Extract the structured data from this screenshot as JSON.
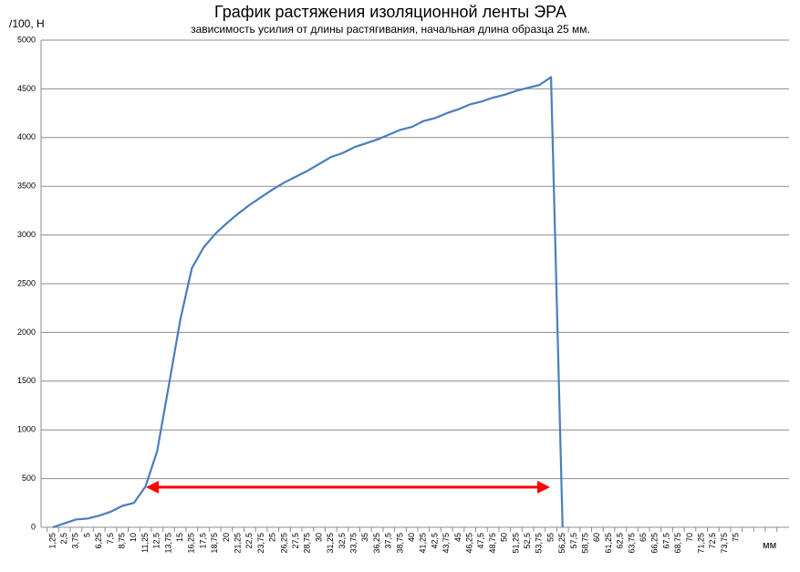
{
  "chart_data": {
    "type": "line",
    "title": "График растяжения изоляционной ленты ЭРА",
    "subtitle": "зависимость усилия от длины растягивания, начальная длина образца 25 мм.",
    "y_label": "/100, Н",
    "x_label": "мм",
    "categories": [
      "1,25",
      "2,5",
      "3,75",
      "5",
      "6,25",
      "7,5",
      "8,75",
      "10",
      "11,25",
      "12,5",
      "13,75",
      "15",
      "16,25",
      "17,5",
      "18,75",
      "20",
      "21,25",
      "22,5",
      "23,75",
      "25",
      "26,25",
      "27,5",
      "28,75",
      "30",
      "31,25",
      "32,5",
      "33,75",
      "35",
      "36,25",
      "37,5",
      "38,75",
      "40",
      "41,25",
      "42,5",
      "43,75",
      "45",
      "46,25",
      "47,5",
      "48,75",
      "50",
      "51,25",
      "52,5",
      "53,75",
      "55",
      "56,25",
      "57,5",
      "58,75",
      "60",
      "61,25",
      "62,5",
      "63,75",
      "65",
      "66,25",
      "67,5",
      "68,75",
      "70",
      "71,25",
      "72,5",
      "73,75",
      "75",
      null,
      null,
      null
    ],
    "values": [
      0,
      40,
      80,
      90,
      120,
      160,
      220,
      250,
      420,
      780,
      1450,
      2130,
      2660,
      2870,
      3010,
      3120,
      3220,
      3310,
      3390,
      3470,
      3540,
      3600,
      3660,
      3730,
      3800,
      3840,
      3900,
      3940,
      3980,
      4030,
      4080,
      4110,
      4170,
      4200,
      4250,
      4290,
      4340,
      4370,
      4410,
      4440,
      4480,
      4510,
      4540,
      4620,
      0,
      null,
      null,
      null,
      null,
      null,
      null,
      null,
      null,
      null,
      null,
      null,
      null,
      null,
      null,
      null,
      null,
      null,
      null
    ],
    "color": "#4a7ebb",
    "ylim": [
      0,
      5000
    ],
    "yticks": [
      0,
      500,
      1000,
      1500,
      2000,
      2500,
      3000,
      3500,
      4000,
      4500,
      5000
    ],
    "grid": true
  }
}
